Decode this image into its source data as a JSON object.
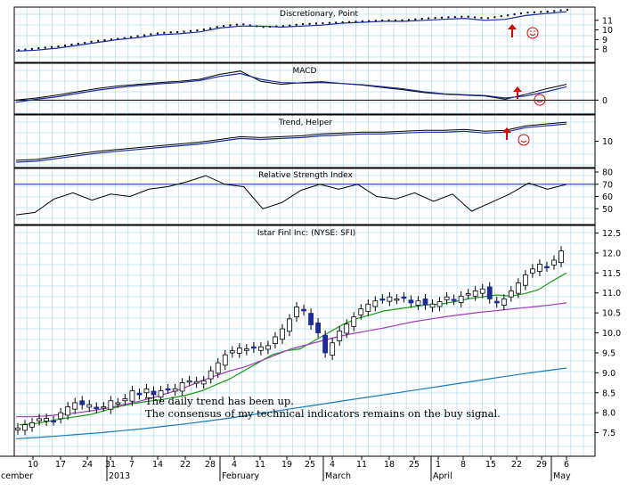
{
  "chart_data": {
    "type": "candlestick-with-indicators",
    "title": "Istar Finl Inc: (NYSE: SFI)",
    "x_tick_labels": [
      "10",
      "17",
      "24",
      "31",
      "7",
      "14",
      "22",
      "28",
      "4",
      "11",
      "19",
      "25",
      "4",
      "11",
      "18",
      "25",
      "1",
      "8",
      "15",
      "22",
      "29",
      "6"
    ],
    "month_labels": [
      "cember",
      "2013",
      "February",
      "March",
      "April",
      "May"
    ],
    "annotation_lines": [
      "The daily trend has been up.",
      "The consensus of my technical indicators remains on the buy signal."
    ],
    "panels": [
      {
        "name": "Discretionary, Point",
        "ylim": [
          7,
          12
        ],
        "y_ticks": [
          "11",
          "10",
          "9",
          "8"
        ],
        "series": [
          {
            "name": "Point (dots)",
            "values": [
              7.9,
              8.1,
              8.3,
              8.6,
              8.9,
              9.1,
              9.4,
              9.7,
              9.8,
              10.0,
              10.4,
              10.6,
              10.3,
              10.4,
              10.6,
              10.7,
              10.8,
              10.9,
              11.0,
              11.0,
              11.2,
              11.3,
              11.4,
              11.2,
              11.5,
              11.8,
              11.9,
              12.1
            ]
          },
          {
            "name": "Discretionary (line)",
            "values": [
              7.8,
              7.9,
              8.1,
              8.4,
              8.7,
              9.0,
              9.2,
              9.5,
              9.6,
              9.8,
              10.2,
              10.4,
              10.4,
              10.3,
              10.4,
              10.5,
              10.7,
              10.8,
              10.9,
              10.9,
              11.0,
              11.1,
              11.2,
              11.0,
              11.1,
              11.5,
              11.7,
              11.9
            ]
          }
        ],
        "signals": [
          "buy arrow near Apr 19",
          "smiley near Apr 26"
        ]
      },
      {
        "name": "MACD",
        "ylim": [
          -0.25,
          0.8
        ],
        "y_ticks": [
          "0"
        ],
        "series": [
          {
            "name": "MACD",
            "values": [
              0.0,
              0.05,
              0.12,
              0.2,
              0.28,
              0.34,
              0.38,
              0.42,
              0.45,
              0.5,
              0.62,
              0.7,
              0.45,
              0.38,
              0.42,
              0.44,
              0.4,
              0.36,
              0.3,
              0.25,
              0.18,
              0.14,
              0.12,
              0.1,
              0.02,
              0.14,
              0.27,
              0.38
            ]
          },
          {
            "name": "Signal",
            "values": [
              -0.05,
              0.02,
              0.08,
              0.16,
              0.24,
              0.3,
              0.35,
              0.39,
              0.42,
              0.47,
              0.57,
              0.64,
              0.5,
              0.42,
              0.41,
              0.42,
              0.4,
              0.37,
              0.32,
              0.27,
              0.2,
              0.15,
              0.13,
              0.11,
              0.05,
              0.1,
              0.2,
              0.32
            ]
          }
        ]
      },
      {
        "name": "Trend, Helper",
        "ylim": [
          7.5,
          12.5
        ],
        "y_ticks": [
          "10"
        ],
        "series": [
          {
            "name": "Trend",
            "values": [
              7.9,
              8.0,
              8.3,
              8.6,
              8.9,
              9.1,
              9.3,
              9.5,
              9.7,
              9.9,
              10.2,
              10.5,
              10.4,
              10.5,
              10.6,
              10.8,
              10.9,
              11.0,
              11.0,
              11.1,
              11.2,
              11.2,
              11.3,
              11.1,
              11.2,
              11.7,
              11.9,
              12.1
            ]
          },
          {
            "name": "Helper",
            "values": [
              7.7,
              7.8,
              8.1,
              8.4,
              8.7,
              8.9,
              9.1,
              9.3,
              9.5,
              9.7,
              10.0,
              10.3,
              10.2,
              10.3,
              10.4,
              10.6,
              10.7,
              10.8,
              10.8,
              10.9,
              11.0,
              11.0,
              11.1,
              10.9,
              11.0,
              11.5,
              11.7,
              11.9
            ]
          }
        ],
        "signals": [
          "buy arrow near Apr 17",
          "smiley near Apr 22"
        ]
      },
      {
        "name": "Relative Strength Index",
        "ylim": [
          40,
          80
        ],
        "y_ticks": [
          "80",
          "70",
          "60",
          "50"
        ],
        "reference_line": 70,
        "series": [
          {
            "name": "RSI",
            "values": [
              45,
              47,
              58,
              63,
              57,
              62,
              60,
              66,
              68,
              72,
              77,
              70,
              68,
              50,
              55,
              65,
              70,
              66,
              70,
              60,
              58,
              63,
              56,
              62,
              48,
              55,
              62,
              71,
              66,
              70
            ]
          }
        ]
      },
      {
        "name": "Istar Finl Inc: (NYSE: SFI)",
        "ylim": [
          7,
          12.6
        ],
        "y_ticks": [
          "12.5",
          "12.0",
          "11.5",
          "11.0",
          "10.5",
          "10.0",
          "9.5",
          "9.0",
          "8.5",
          "8.0",
          "7.5"
        ],
        "candles": {
          "close": [
            7.62,
            7.7,
            7.75,
            7.85,
            7.86,
            7.8,
            8.0,
            8.15,
            8.25,
            8.2,
            8.2,
            8.1,
            8.15,
            8.3,
            8.25,
            8.35,
            8.55,
            8.45,
            8.6,
            8.45,
            8.55,
            8.6,
            8.6,
            8.75,
            8.8,
            8.78,
            8.8,
            9.05,
            9.25,
            9.45,
            9.55,
            9.62,
            9.6,
            9.62,
            9.65,
            9.68,
            9.9,
            10.1,
            10.35,
            10.65,
            10.55,
            10.2,
            10.0,
            9.5,
            9.75,
            10.05,
            10.22,
            10.4,
            10.6,
            10.72,
            10.8,
            10.85,
            10.9,
            10.85,
            10.88,
            10.75,
            10.8,
            10.7,
            10.72,
            10.78,
            10.9,
            10.82,
            10.92,
            10.98,
            11.05,
            11.1,
            10.85,
            10.75,
            10.85,
            11.05,
            11.25,
            11.45,
            11.6,
            11.72,
            11.65,
            11.82,
            12.05
          ],
          "up_volume_color": "#000000",
          "down_color": "#1c2a9c"
        },
        "series": [
          {
            "name": "short MA (green)",
            "color": "#1a9a1a",
            "values": [
              7.7,
              7.72,
              7.78,
              7.85,
              7.9,
              7.95,
              8.05,
              8.15,
              8.22,
              8.28,
              8.32,
              8.38,
              8.45,
              8.55,
              8.7,
              8.85,
              9.05,
              9.25,
              9.45,
              9.55,
              9.6,
              9.8,
              10.0,
              10.2,
              10.35,
              10.45,
              10.55,
              10.6,
              10.65,
              10.7,
              10.72,
              10.78,
              10.85,
              10.9,
              10.95,
              10.92,
              10.98,
              11.08,
              11.3,
              11.5
            ]
          },
          {
            "name": "medium MA (purple)",
            "color": "#a03ab8",
            "values": [
              7.9,
              7.9,
              7.92,
              7.96,
              8.0,
              8.05,
              8.12,
              8.2,
              8.28,
              8.38,
              8.5,
              8.62,
              8.78,
              8.92,
              9.05,
              9.15,
              9.3,
              9.45,
              9.6,
              9.7,
              9.8,
              9.9,
              9.98,
              10.05,
              10.12,
              10.2,
              10.28,
              10.34,
              10.4,
              10.45,
              10.5,
              10.54,
              10.58,
              10.62,
              10.66,
              10.7,
              10.75
            ]
          },
          {
            "name": "long MA (blue)",
            "color": "#1a7ab8",
            "values": [
              7.35,
              7.38,
              7.42,
              7.46,
              7.5,
              7.55,
              7.6,
              7.66,
              7.72,
              7.79,
              7.86,
              7.94,
              8.02,
              8.1,
              8.18,
              8.26,
              8.34,
              8.42,
              8.5,
              8.58,
              8.66,
              8.74,
              8.82,
              8.9,
              8.98,
              9.05,
              9.12
            ]
          }
        ]
      }
    ]
  }
}
